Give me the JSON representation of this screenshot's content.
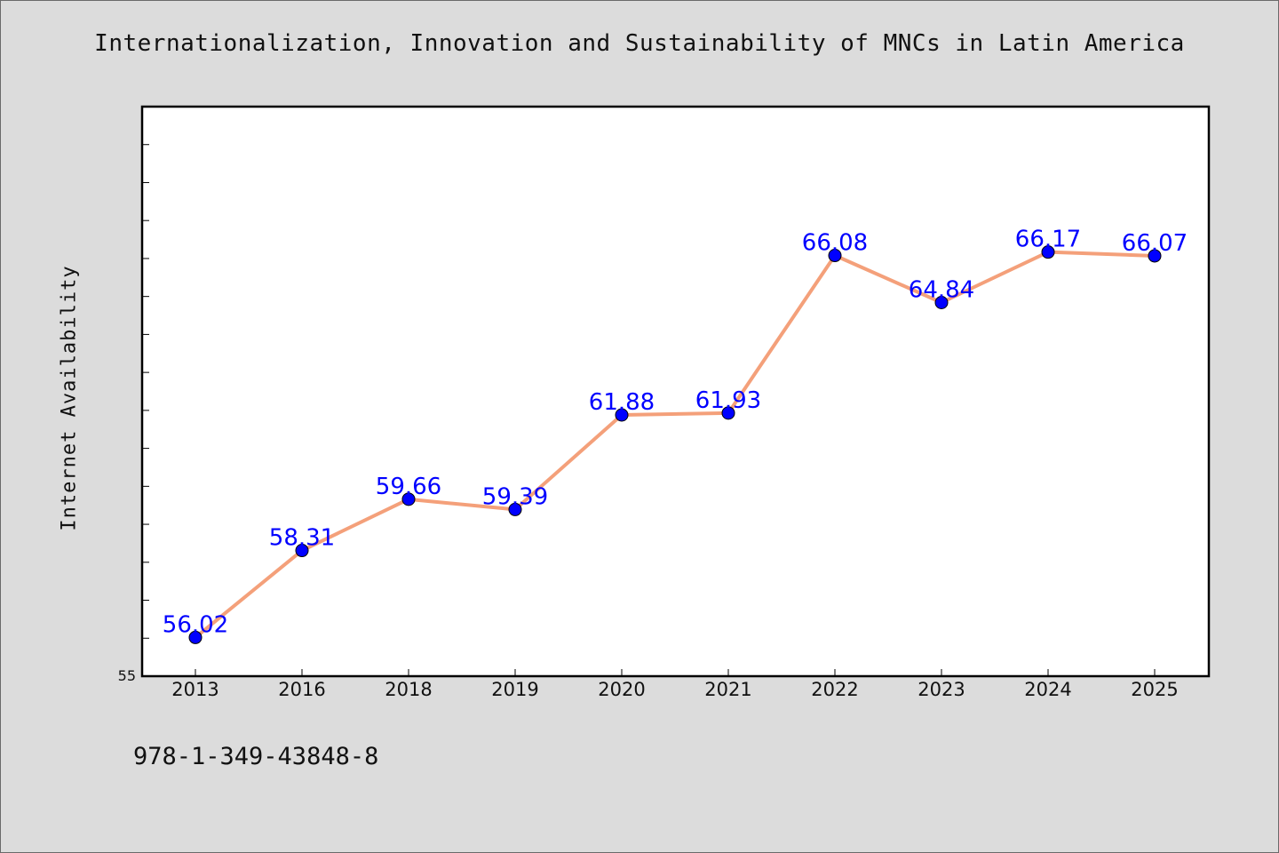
{
  "chart_data": {
    "type": "line",
    "title": "Internationalization, Innovation and Sustainability of MNCs in Latin America",
    "xlabel": "",
    "ylabel": "Internet Availability",
    "categories": [
      "2013",
      "2016",
      "2018",
      "2019",
      "2020",
      "2021",
      "2022",
      "2023",
      "2024",
      "2025"
    ],
    "series": [
      {
        "values": [
          56.02,
          58.31,
          59.66,
          59.39,
          61.88,
          61.93,
          66.08,
          64.84,
          66.17,
          66.07
        ],
        "data_labels": [
          "56.02",
          "58.31",
          "59.66",
          "59.39",
          "61.88",
          "61.93",
          "66.08",
          "64.84",
          "66.17",
          "66.07"
        ]
      }
    ],
    "y_tick_labels": [
      "55"
    ],
    "ylim": [
      55,
      70
    ],
    "grid": false,
    "legend": "none",
    "colors": {
      "line": "#f4a07a",
      "marker": "#0000ff",
      "data_label": "#0000ff",
      "plot_background": "#ffffff",
      "page_background": "#dcdcdc"
    }
  },
  "footer_text": "978-1-349-43848-8"
}
